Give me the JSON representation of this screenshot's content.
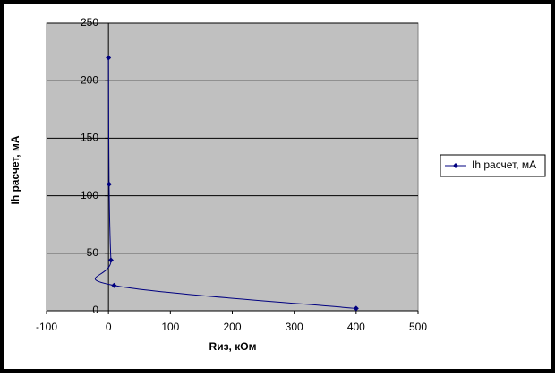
{
  "chart_data": {
    "type": "scatter-line",
    "x_label": "Rиз, кОм",
    "y_label": "Ih расчет, мА",
    "series": [
      {
        "name": "Ih расчет, мА",
        "color": "#000080",
        "x": [
          0,
          1,
          4,
          9,
          400
        ],
        "values": [
          220,
          110,
          44,
          22,
          2
        ]
      }
    ],
    "xlim": [
      -100,
      500
    ],
    "xticks": [
      -100,
      0,
      100,
      200,
      300,
      400,
      500
    ],
    "ylim": [
      0,
      250
    ],
    "yticks": [
      0,
      50,
      100,
      150,
      200,
      250
    ],
    "grid": true,
    "legend": "right"
  }
}
